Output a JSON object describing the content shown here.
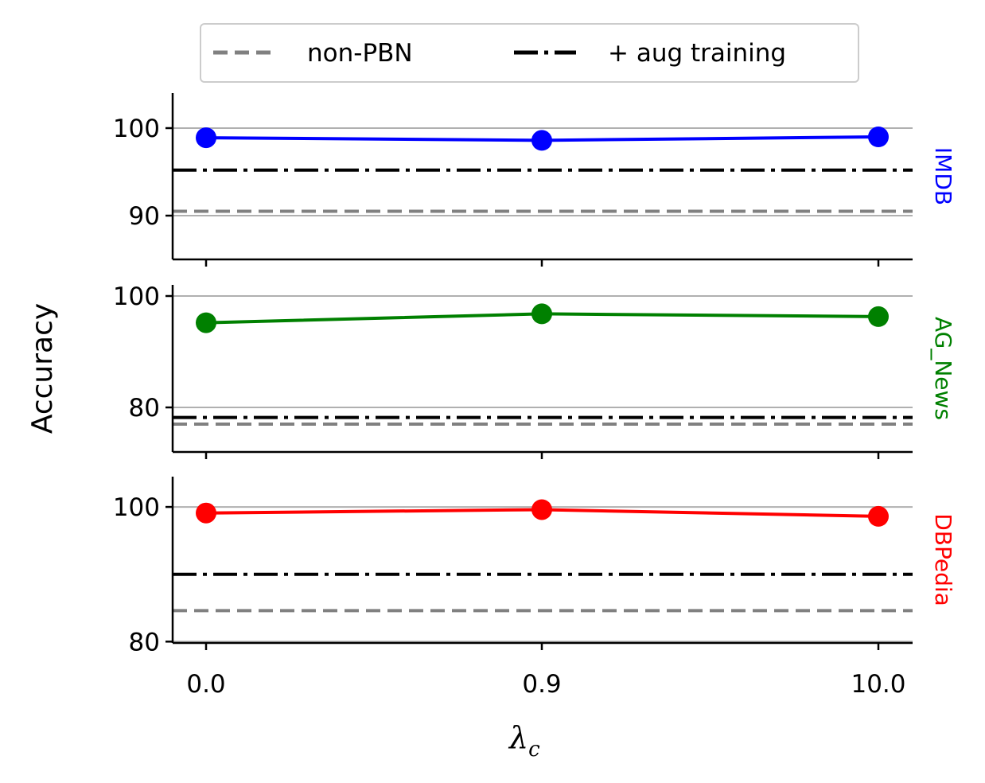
{
  "chart_data": {
    "type": "line",
    "x": [
      0.0,
      0.9,
      10.0
    ],
    "x_tick_labels": [
      "0.0",
      "0.9",
      "10.0"
    ],
    "xlabel_main": "λ",
    "xlabel_sub": "c",
    "ylabel": "Accuracy",
    "legend": {
      "placement": "top-center",
      "entries": [
        {
          "label": "non-PBN",
          "style": "dashed",
          "color": "#808080"
        },
        {
          "label": "+ aug training",
          "style": "dashdot",
          "color": "#000000"
        }
      ]
    },
    "panels": [
      {
        "name": "IMDB",
        "color": "#0000ff",
        "ylim": [
          85,
          104
        ],
        "yticks": [
          90,
          100
        ],
        "ytick_labels": [
          "90",
          "100"
        ],
        "grid": true,
        "values": [
          98.9,
          98.6,
          99.0
        ],
        "non_pbn": 90.5,
        "aug_training": 95.2
      },
      {
        "name": "AG_News",
        "color": "#008000",
        "ylim": [
          72,
          102
        ],
        "yticks": [
          80,
          100
        ],
        "ytick_labels": [
          "80",
          "100"
        ],
        "grid": true,
        "values": [
          95.2,
          96.8,
          96.3
        ],
        "non_pbn": 77.0,
        "aug_training": 78.2
      },
      {
        "name": "DBPedia",
        "color": "#ff0000",
        "ylim": [
          79.8,
          104.5
        ],
        "yticks": [
          80,
          100
        ],
        "ytick_labels": [
          "80",
          "100"
        ],
        "grid": true,
        "values": [
          99.1,
          99.6,
          98.6
        ],
        "non_pbn": 84.6,
        "aug_training": 90.0
      }
    ]
  }
}
